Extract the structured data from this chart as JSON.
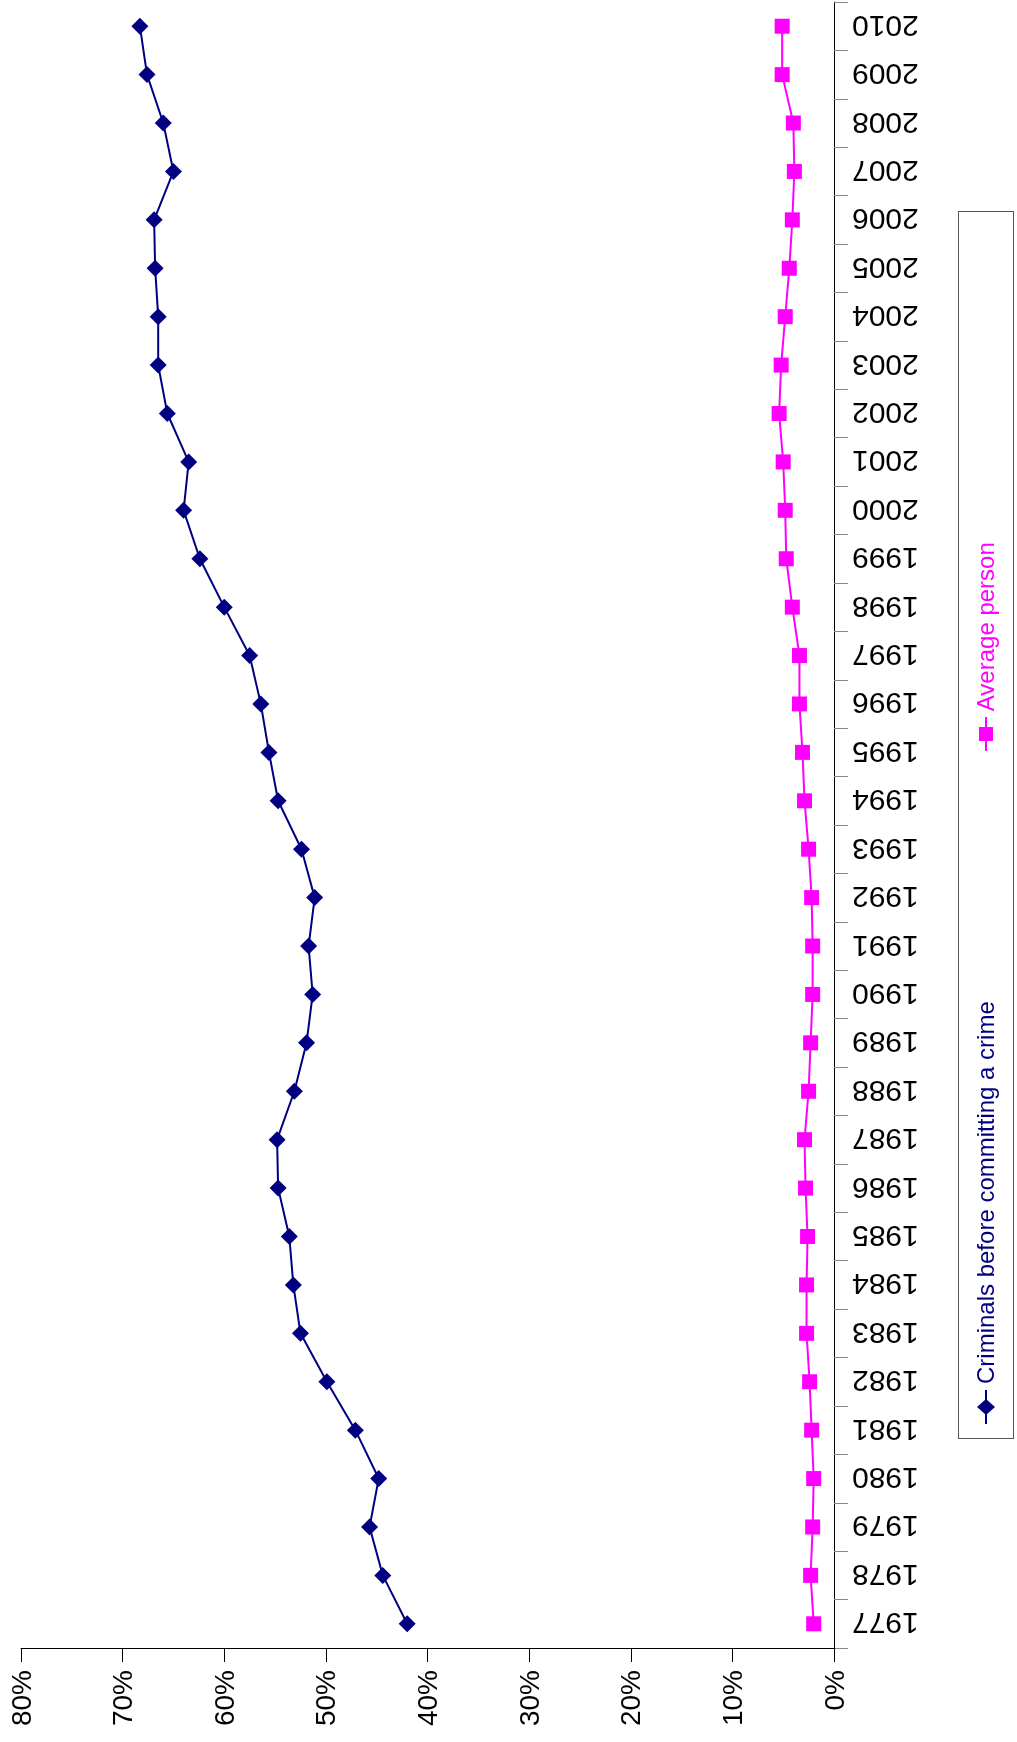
{
  "chart_data": {
    "type": "line",
    "orientation": "horizontal",
    "categories": [
      "2010",
      "2009",
      "2008",
      "2007",
      "2006",
      "2005",
      "2004",
      "2003",
      "2002",
      "2001",
      "2000",
      "1999",
      "1998",
      "1997",
      "1996",
      "1995",
      "1994",
      "1993",
      "1992",
      "1991",
      "1990",
      "1989",
      "1988",
      "1987",
      "1986",
      "1985",
      "1984",
      "1983",
      "1982",
      "1981",
      "1980",
      "1979",
      "1978",
      "1977"
    ],
    "series": [
      {
        "name": "Criminals before committing a crime",
        "color": "#000080",
        "marker": "diamond",
        "values": [
          68.3,
          67.6,
          66.0,
          65.0,
          66.9,
          66.8,
          66.5,
          66.5,
          65.6,
          63.5,
          64.0,
          62.4,
          60.0,
          57.5,
          56.4,
          55.6,
          54.7,
          52.4,
          51.1,
          51.7,
          51.3,
          51.9,
          53.1,
          54.8,
          54.7,
          53.6,
          53.2,
          52.5,
          49.9,
          47.1,
          44.8,
          45.7,
          44.4,
          42.0
        ]
      },
      {
        "name": "Average person",
        "color": "#ff00ff",
        "marker": "square",
        "values": [
          5.1,
          5.1,
          4.0,
          3.9,
          4.1,
          4.4,
          4.8,
          5.2,
          5.4,
          5.0,
          4.8,
          4.7,
          4.1,
          3.4,
          3.4,
          3.1,
          2.9,
          2.5,
          2.2,
          2.1,
          2.1,
          2.3,
          2.5,
          2.9,
          2.8,
          2.6,
          2.7,
          2.7,
          2.4,
          2.2,
          2.0,
          2.1,
          2.3,
          2.0
        ]
      }
    ],
    "xlim": [
      80,
      0
    ],
    "xticks": [
      {
        "value": 80,
        "label": "80%"
      },
      {
        "value": 70,
        "label": "70%"
      },
      {
        "value": 60,
        "label": "60%"
      },
      {
        "value": 50,
        "label": "50%"
      },
      {
        "value": 40,
        "label": "40%"
      },
      {
        "value": 30,
        "label": "30%"
      },
      {
        "value": 20,
        "label": "20%"
      },
      {
        "value": 10,
        "label": "10%"
      },
      {
        "value": 0,
        "label": "0%"
      }
    ],
    "grid": false,
    "legend": "right"
  }
}
